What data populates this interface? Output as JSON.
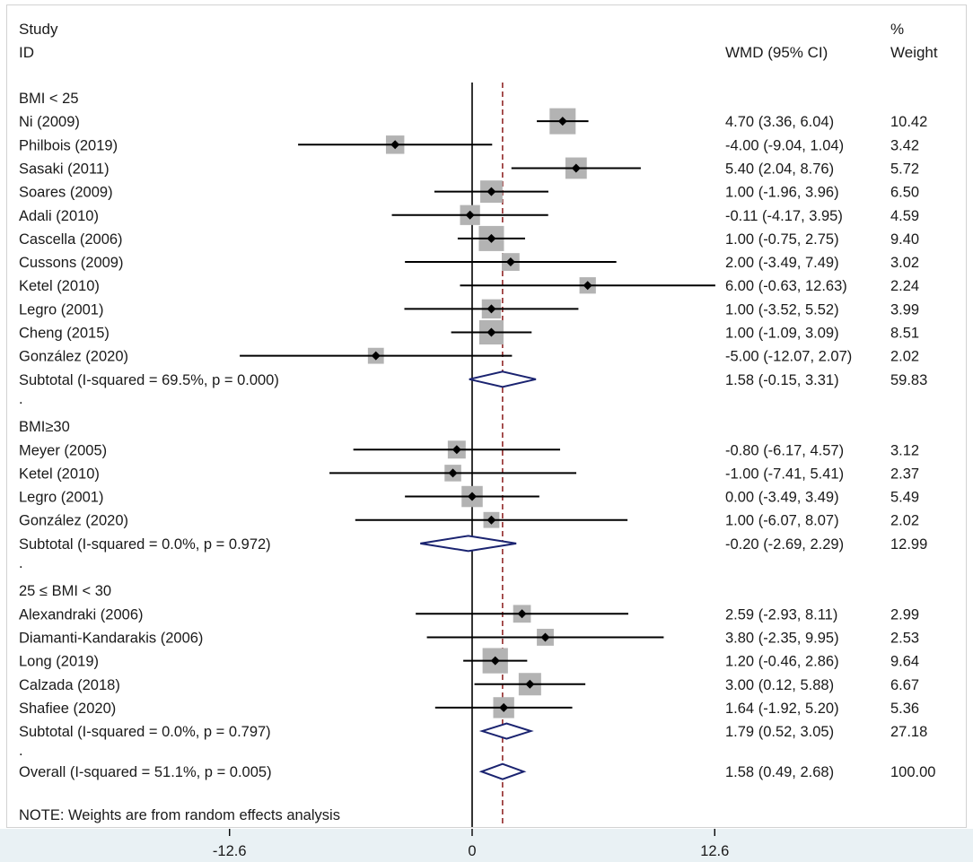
{
  "chart_data": {
    "type": "forest",
    "columns": {
      "study": [
        "Study",
        "ID"
      ],
      "effect": "WMD (95% CI)",
      "weight": [
        "%",
        "Weight"
      ]
    },
    "x_axis": {
      "ticks": [
        -12.6,
        0,
        12.6
      ],
      "tick_labels": [
        "-12.6",
        "0",
        "12.6"
      ],
      "xlim": [
        -18.5,
        20.7
      ],
      "null_line": 0
    },
    "overall_reference": 1.58,
    "groups": [
      {
        "name": "BMI  < 25",
        "studies": [
          {
            "label": "Ni (2009)",
            "est": 4.7,
            "lo": 3.36,
            "hi": 6.04,
            "ci_text": "4.70 (3.36, 6.04)",
            "weight": 10.42,
            "weight_text": "10.42"
          },
          {
            "label": "Philbois (2019)",
            "est": -4.0,
            "lo": -9.04,
            "hi": 1.04,
            "ci_text": "-4.00 (-9.04, 1.04)",
            "weight": 3.42,
            "weight_text": "3.42"
          },
          {
            "label": "Sasaki (2011)",
            "est": 5.4,
            "lo": 2.04,
            "hi": 8.76,
            "ci_text": "5.40 (2.04, 8.76)",
            "weight": 5.72,
            "weight_text": "5.72"
          },
          {
            "label": "Soares (2009)",
            "est": 1.0,
            "lo": -1.96,
            "hi": 3.96,
            "ci_text": "1.00 (-1.96, 3.96)",
            "weight": 6.5,
            "weight_text": "6.50"
          },
          {
            "label": "Adali (2010)",
            "est": -0.11,
            "lo": -4.17,
            "hi": 3.95,
            "ci_text": "-0.11 (-4.17, 3.95)",
            "weight": 4.59,
            "weight_text": "4.59"
          },
          {
            "label": "Cascella (2006)",
            "est": 1.0,
            "lo": -0.75,
            "hi": 2.75,
            "ci_text": "1.00 (-0.75, 2.75)",
            "weight": 9.4,
            "weight_text": "9.40"
          },
          {
            "label": "Cussons (2009)",
            "est": 2.0,
            "lo": -3.49,
            "hi": 7.49,
            "ci_text": "2.00 (-3.49, 7.49)",
            "weight": 3.02,
            "weight_text": "3.02"
          },
          {
            "label": "Ketel (2010)",
            "est": 6.0,
            "lo": -0.63,
            "hi": 12.63,
            "ci_text": "6.00 (-0.63, 12.63)",
            "weight": 2.24,
            "weight_text": "2.24"
          },
          {
            "label": "Legro (2001)",
            "est": 1.0,
            "lo": -3.52,
            "hi": 5.52,
            "ci_text": "1.00 (-3.52, 5.52)",
            "weight": 3.99,
            "weight_text": "3.99"
          },
          {
            "label": "Cheng (2015)",
            "est": 1.0,
            "lo": -1.09,
            "hi": 3.09,
            "ci_text": "1.00 (-1.09, 3.09)",
            "weight": 8.51,
            "weight_text": "8.51"
          },
          {
            "label": "González (2020)",
            "est": -5.0,
            "lo": -12.07,
            "hi": 2.07,
            "ci_text": "-5.00 (-12.07, 2.07)",
            "weight": 2.02,
            "weight_text": "2.02"
          }
        ],
        "subtotal": {
          "label": "Subtotal  (I-squared = 69.5%, p = 0.000)",
          "est": 1.58,
          "lo": -0.15,
          "hi": 3.31,
          "ci_text": "1.58 (-0.15, 3.31)",
          "weight_text": "59.83"
        }
      },
      {
        "name": "BMI≥30",
        "studies": [
          {
            "label": "Meyer (2005)",
            "est": -0.8,
            "lo": -6.17,
            "hi": 4.57,
            "ci_text": "-0.80 (-6.17, 4.57)",
            "weight": 3.12,
            "weight_text": "3.12"
          },
          {
            "label": "Ketel (2010)",
            "est": -1.0,
            "lo": -7.41,
            "hi": 5.41,
            "ci_text": "-1.00 (-7.41, 5.41)",
            "weight": 2.37,
            "weight_text": "2.37"
          },
          {
            "label": "Legro (2001)",
            "est": 0.0,
            "lo": -3.49,
            "hi": 3.49,
            "ci_text": "0.00 (-3.49, 3.49)",
            "weight": 5.49,
            "weight_text": "5.49"
          },
          {
            "label": "González (2020)",
            "est": 1.0,
            "lo": -6.07,
            "hi": 8.07,
            "ci_text": "1.00 (-6.07, 8.07)",
            "weight": 2.02,
            "weight_text": "2.02"
          }
        ],
        "subtotal": {
          "label": "Subtotal  (I-squared = 0.0%, p = 0.972)",
          "est": -0.2,
          "lo": -2.69,
          "hi": 2.29,
          "ci_text": "-0.20 (-2.69, 2.29)",
          "weight_text": "12.99"
        }
      },
      {
        "name": "25 ≤ BMI  < 30",
        "studies": [
          {
            "label": "Alexandraki (2006)",
            "est": 2.59,
            "lo": -2.93,
            "hi": 8.11,
            "ci_text": "2.59 (-2.93, 8.11)",
            "weight": 2.99,
            "weight_text": "2.99"
          },
          {
            "label": "Diamanti-Kandarakis (2006)",
            "est": 3.8,
            "lo": -2.35,
            "hi": 9.95,
            "ci_text": "3.80 (-2.35, 9.95)",
            "weight": 2.53,
            "weight_text": "2.53"
          },
          {
            "label": "Long (2019)",
            "est": 1.2,
            "lo": -0.46,
            "hi": 2.86,
            "ci_text": "1.20 (-0.46, 2.86)",
            "weight": 9.64,
            "weight_text": "9.64"
          },
          {
            "label": "Calzada (2018)",
            "est": 3.0,
            "lo": 0.12,
            "hi": 5.88,
            "ci_text": "3.00 (0.12, 5.88)",
            "weight": 6.67,
            "weight_text": "6.67"
          },
          {
            "label": "Shafiee (2020)",
            "est": 1.64,
            "lo": -1.92,
            "hi": 5.2,
            "ci_text": "1.64 (-1.92, 5.20)",
            "weight": 5.36,
            "weight_text": "5.36"
          }
        ],
        "subtotal": {
          "label": "Subtotal  (I-squared = 0.0%, p = 0.797)",
          "est": 1.79,
          "lo": 0.52,
          "hi": 3.05,
          "ci_text": "1.79 (0.52, 3.05)",
          "weight_text": "27.18"
        }
      }
    ],
    "separator": ".",
    "overall": {
      "label": "Overall  (I-squared = 51.1%, p = 0.005)",
      "est": 1.58,
      "lo": 0.49,
      "hi": 2.68,
      "ci_text": "1.58 (0.49, 2.68)",
      "weight_text": "100.00"
    },
    "note": "NOTE: Weights are from random effects analysis",
    "colors": {
      "ci_line": "#000000",
      "weight_box": "#b3b3b3",
      "point": "#000000",
      "diamond": "#1a2370",
      "reference_line": "#8b1a1a",
      "axis_band": "#e9f1f4"
    }
  }
}
